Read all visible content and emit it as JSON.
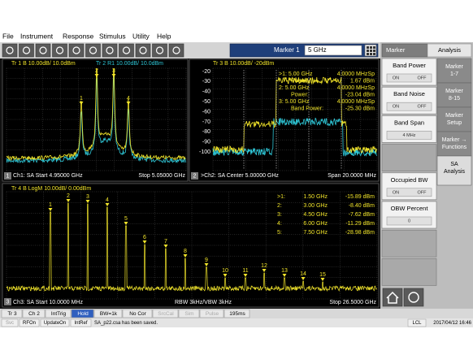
{
  "menu": [
    "File",
    "Instrument",
    "Response",
    "Stimulus",
    "Utility",
    "Help"
  ],
  "toolbar": {
    "marker_label": "Marker 1",
    "marker_value": "5 GHz"
  },
  "windows": [
    {
      "number": "1",
      "traces": [
        "Tr 1  B 10.00dB/ 10.0dBm",
        "Tr 2  R1 10.00dB/ 10.0dBm"
      ],
      "markers": [
        "1",
        "2",
        "3",
        "4"
      ],
      "footer": [
        "Ch1: SA  Start 4.95000 GHz",
        "Stop 5.05000 GHz"
      ]
    },
    {
      "number": "2",
      "traces": [
        "Tr 3  B 10.00dB/ -20dBm"
      ],
      "yticks": [
        "-20",
        "-30",
        "-40",
        "-50",
        "-60",
        "-70",
        "-80",
        "-90",
        "-100"
      ],
      "marker_table": [
        [
          ">1:  5.00 GHz",
          "4.0000 MHzSp"
        ],
        [
          "Power:",
          "1.67 dBm"
        ],
        [
          "2:  5.00 GHz",
          "4.0000 MHzSp"
        ],
        [
          "Power:",
          "-23.04 dBm"
        ],
        [
          "3:  5.00 GHz",
          "4.0000 MHzSp"
        ],
        [
          "Band Power:",
          "-25.30 dBm"
        ]
      ],
      "footer": [
        ">Ch2: SA  Center 5.00000 GHz",
        "Span 20.0000 MHz"
      ]
    },
    {
      "number": "3",
      "traces": [
        "Tr 4  B LogM 10.00dB/ 0.00dBm"
      ],
      "markers": [
        "1",
        "2",
        "3",
        "4",
        "5",
        "6",
        "7",
        "8",
        "9",
        "10",
        "11",
        "12",
        "13",
        "14",
        "15"
      ],
      "marker_table": [
        [
          ">1:",
          "1.50 GHz",
          "-15.89 dBm"
        ],
        [
          "2:",
          "3.00 GHz",
          "-8.40 dBm"
        ],
        [
          "3:",
          "4.50 GHz",
          "-7.62 dBm"
        ],
        [
          "4:",
          "6.00 GHz",
          "-11.29 dBm"
        ],
        [
          "5:",
          "7.50 GHz",
          "-28.98 dBm"
        ]
      ],
      "footer": [
        "Ch3: SA  Start 10.0000 MHz",
        "RBW 3kHz/VBW 3kHz",
        "Stop 26.5000 GHz"
      ]
    }
  ],
  "panel": {
    "tabs": [
      "Marker",
      "Analysis"
    ],
    "softkeys": [
      {
        "label": [
          "Band Power"
        ],
        "state": [
          "ON",
          "OFF"
        ]
      },
      {
        "label": [
          "Band Noise"
        ],
        "state": [
          "ON",
          "OFF"
        ]
      },
      {
        "label": [
          "Band Span"
        ],
        "value": "4 MHz"
      },
      {
        "label": []
      },
      {
        "label": [
          "Occupied BW"
        ],
        "state": [
          "ON",
          "OFF"
        ]
      },
      {
        "label": [
          "OBW Percent"
        ],
        "value": "0"
      },
      {
        "label": []
      },
      {
        "label": []
      }
    ],
    "side_tabs": [
      [
        "Marker",
        "1-7"
      ],
      [
        "Marker",
        "8-15"
      ],
      [
        "Marker",
        "Setup"
      ],
      [
        "Marker →",
        "Functions"
      ],
      [
        "SA",
        "Analysis"
      ]
    ]
  },
  "status": [
    "Tr 3",
    "Ch 2",
    "IntTrig",
    "Hold",
    "BW=1k",
    "No Cor",
    "SrcCal",
    "Sim",
    "Pulse",
    "195ms"
  ],
  "status2": [
    "Svc",
    "RFOn",
    "UpdateOn",
    "IntRef",
    "SA_p22.csa has been saved.",
    "LCL",
    "2017/04/12 16:46"
  ]
}
